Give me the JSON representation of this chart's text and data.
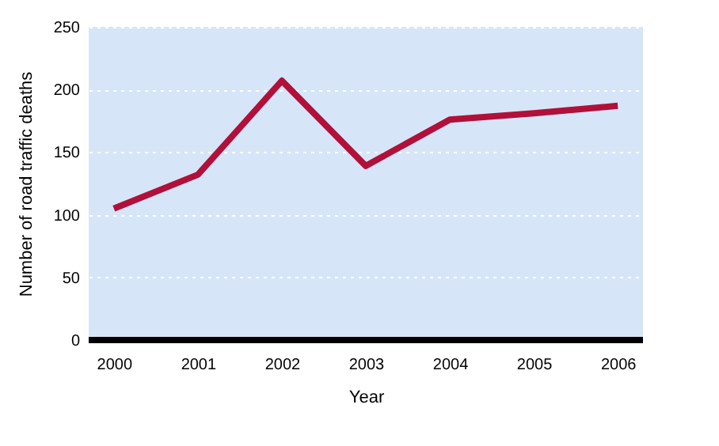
{
  "chart_data": {
    "type": "line",
    "xlabel": "Year",
    "ylabel": "Number of road traffic deaths",
    "categories": [
      "2000",
      "2001",
      "2002",
      "2003",
      "2004",
      "2005",
      "2006"
    ],
    "series": [
      {
        "color": "#b0103a",
        "values": [
          105,
          132,
          207,
          139,
          176,
          181,
          187
        ]
      }
    ],
    "ylim": [
      0,
      250
    ],
    "yticks": [
      0,
      50,
      100,
      150,
      200,
      250
    ],
    "grid": "y",
    "marker": "none",
    "line_style": "solid"
  }
}
